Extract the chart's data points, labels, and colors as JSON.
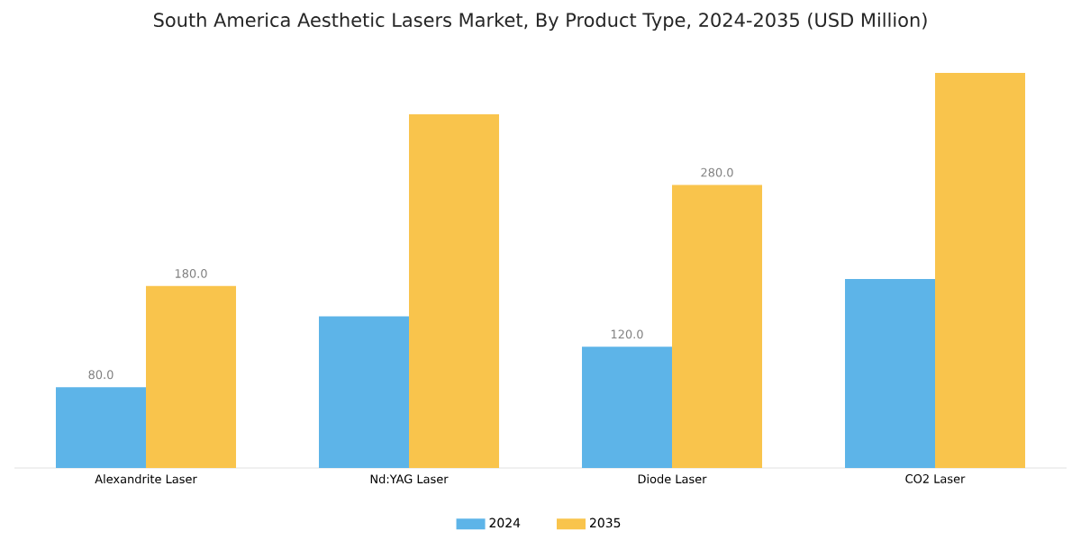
{
  "chart_data": {
    "type": "bar",
    "title": "South America Aesthetic Lasers Market, By Product Type, 2024-2035 (USD Million)",
    "categories": [
      "Alexandrite Laser",
      "Nd:YAG Laser",
      "Diode Laser",
      "CO2 Laser"
    ],
    "series": [
      {
        "name": "2024",
        "color": "#5db4e8",
        "values": [
          80,
          150,
          120,
          187
        ],
        "value_labels": [
          "80.0",
          null,
          "120.0",
          null
        ]
      },
      {
        "name": "2035",
        "color": "#f9c44c",
        "values": [
          180,
          350,
          280,
          391
        ],
        "value_labels": [
          "180.0",
          null,
          "280.0",
          null
        ]
      }
    ],
    "legend": "bottom"
  }
}
